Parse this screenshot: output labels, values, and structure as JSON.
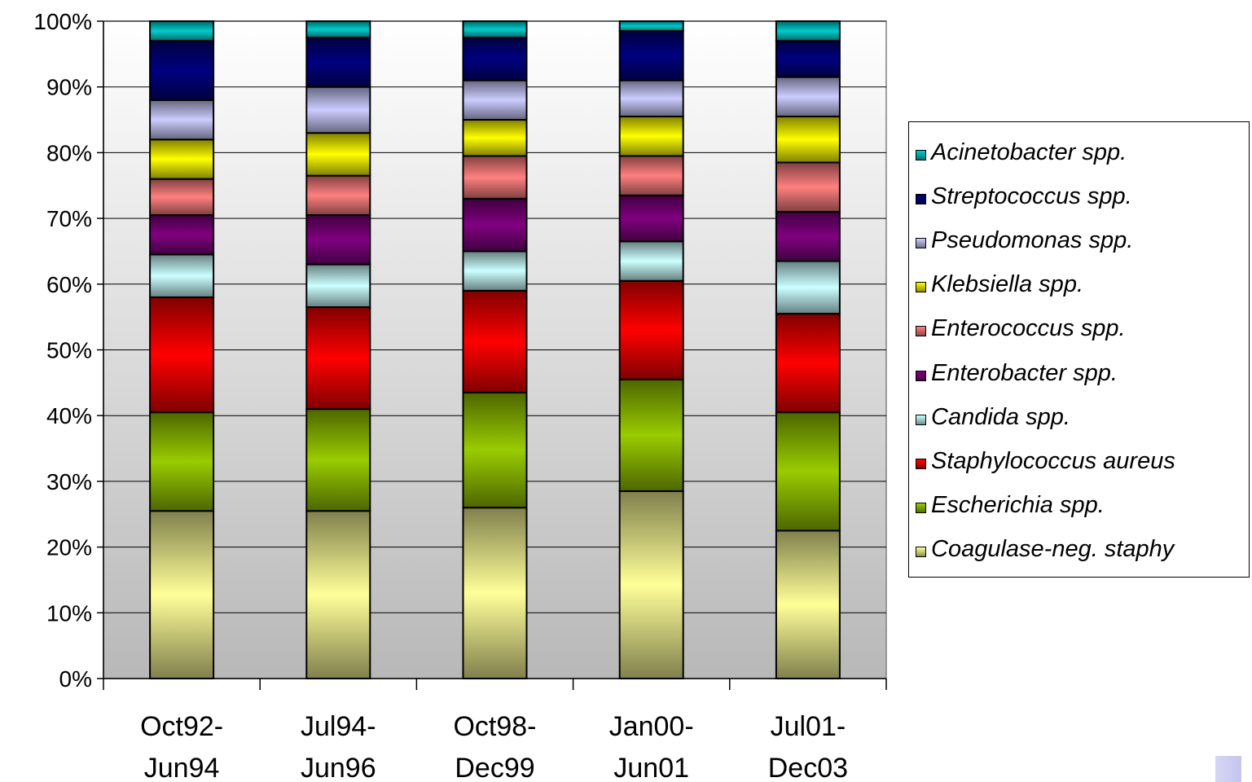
{
  "chart_data": {
    "type": "bar",
    "stacked": true,
    "normalized": "100%",
    "categories": [
      "Oct92-\nJun94",
      "Jul94-\nJun96",
      "Oct98-\nDec99",
      "Jan00-\nJun01",
      "Jul01-\nDec03"
    ],
    "y_ticks": [
      "0%",
      "10%",
      "20%",
      "30%",
      "40%",
      "50%",
      "60%",
      "70%",
      "80%",
      "90%",
      "100%"
    ],
    "ylim": [
      0,
      100
    ],
    "grid": true,
    "legend_position": "right",
    "series": [
      {
        "name": "Coagulase-neg. staphy",
        "color": "#ffff99",
        "values": [
          25.5,
          25.5,
          26,
          28.5,
          22.5
        ]
      },
      {
        "name": "Escherichia spp.",
        "color": "#99cc00",
        "values": [
          15,
          15.5,
          17.5,
          17,
          18
        ]
      },
      {
        "name": "Staphylococcus aureus",
        "color": "#ff0000",
        "values": [
          17.5,
          15.5,
          15.5,
          15,
          15
        ]
      },
      {
        "name": "Candida spp.",
        "color": "#ccffff",
        "values": [
          6.5,
          6.5,
          6,
          6,
          8
        ]
      },
      {
        "name": "Enterobacter spp.",
        "color": "#800080",
        "values": [
          6,
          7.5,
          8,
          7,
          7.5
        ]
      },
      {
        "name": "Enterococcus spp.",
        "color": "#ff8080",
        "values": [
          5.5,
          6,
          6.5,
          6,
          7.5
        ]
      },
      {
        "name": "Klebsiella spp.",
        "color": "#ffff00",
        "values": [
          6,
          6.5,
          5.5,
          6,
          7
        ]
      },
      {
        "name": "Pseudomonas spp.",
        "color": "#ccccff",
        "values": [
          6,
          7,
          6,
          5.5,
          6
        ]
      },
      {
        "name": "Streptococcus spp.",
        "color": "#000080",
        "values": [
          9,
          7.5,
          6.5,
          7.5,
          5.5
        ]
      },
      {
        "name": "Acinetobacter spp.",
        "color": "#00cccc",
        "values": [
          3,
          2.5,
          2.5,
          1.5,
          3
        ]
      }
    ]
  }
}
